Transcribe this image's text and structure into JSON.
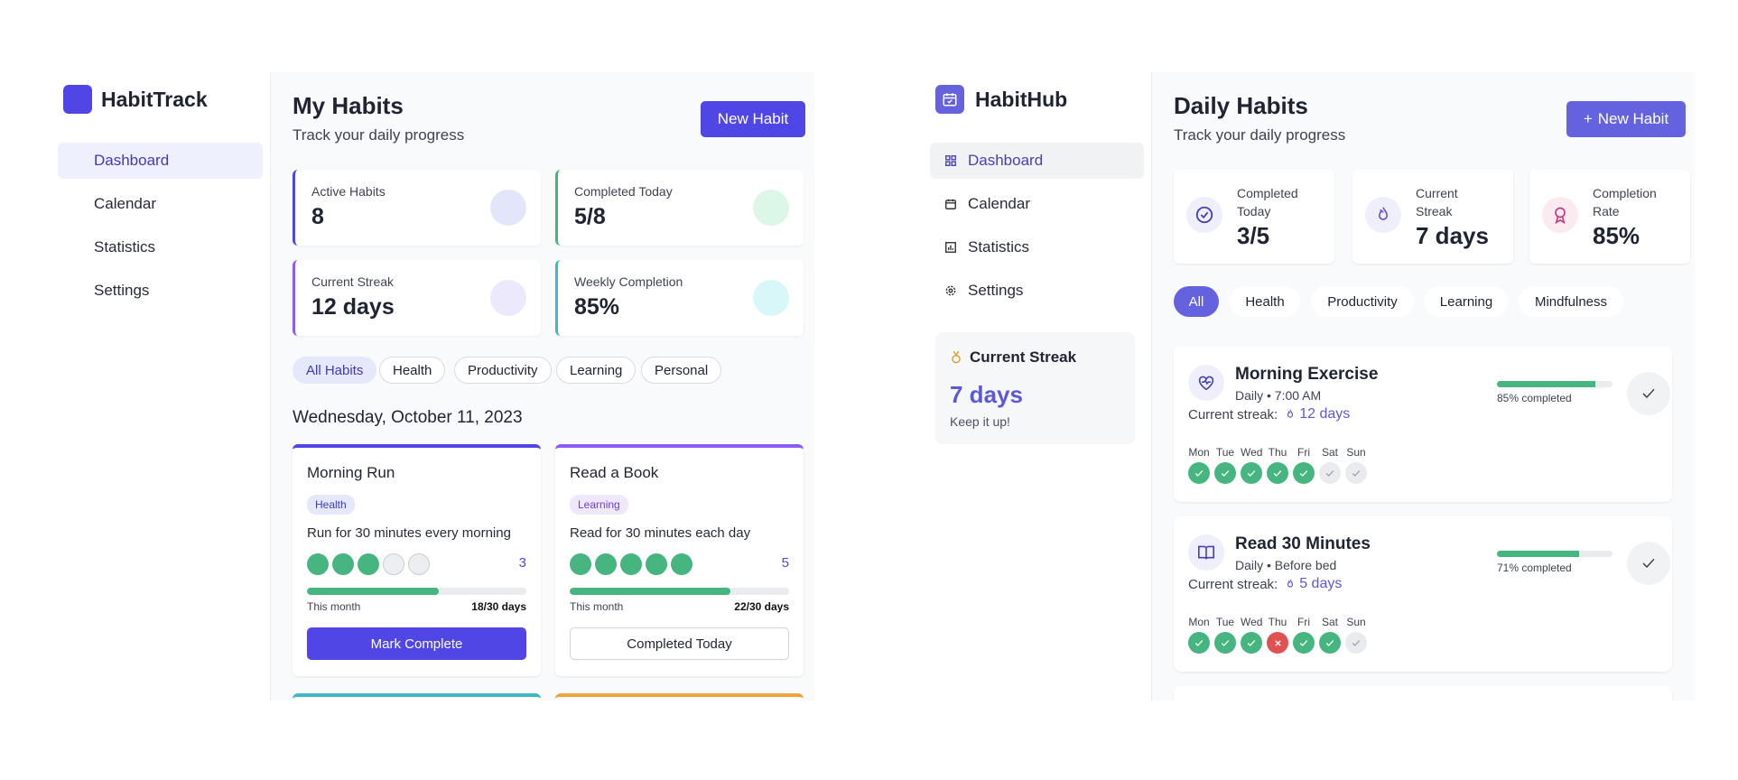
{
  "appA": {
    "brand": "HabitTrack",
    "nav": [
      {
        "label": "Dashboard",
        "active": true
      },
      {
        "label": "Calendar"
      },
      {
        "label": "Statistics"
      },
      {
        "label": "Settings"
      }
    ],
    "title": "My Habits",
    "subtitle": "Track your daily progress",
    "new_habit": "New Habit",
    "stats": [
      {
        "label": "Active Habits",
        "value": "8",
        "color": "#4f46e5",
        "dot": "#e3e6fb"
      },
      {
        "label": "Completed Today",
        "value": "5/8",
        "color": "#47b57f",
        "dot": "#dcf7e7"
      },
      {
        "label": "Current Streak",
        "value": "12 days",
        "color": "#8b5cf6",
        "dot": "#ece9fc"
      },
      {
        "label": "Weekly Completion",
        "value": "85%",
        "color": "#3fb8c4",
        "dot": "#d8f7f9"
      }
    ],
    "filters": [
      "All Habits",
      "Health",
      "Productivity",
      "Learning",
      "Personal"
    ],
    "date": "Wednesday, October 11, 2023",
    "cards": [
      {
        "title": "Morning Run",
        "tag": "Health",
        "desc": "Run for 30 minutes every morning",
        "count": "3",
        "done": 3,
        "month_label": "This month",
        "month_value": "18/30 days",
        "progress": 0.6,
        "button": "Mark Complete",
        "accent": "#4f46e5"
      },
      {
        "title": "Read a Book",
        "tag": "Learning",
        "desc": "Read for 30 minutes each day",
        "count": "5",
        "done": 5,
        "month_label": "This month",
        "month_value": "22/30 days",
        "progress": 0.733,
        "button": "Completed Today",
        "accent": "#8b5cf6"
      }
    ]
  },
  "appB": {
    "brand": "HabitHub",
    "nav": [
      {
        "label": "Dashboard",
        "active": true,
        "icon": "grid-icon"
      },
      {
        "label": "Calendar",
        "icon": "calendar-icon"
      },
      {
        "label": "Statistics",
        "icon": "chart-icon"
      },
      {
        "label": "Settings",
        "icon": "gear-icon"
      }
    ],
    "streak_box": {
      "title": "Current Streak",
      "value": "7 days",
      "note": "Keep it up!"
    },
    "title": "Daily Habits",
    "subtitle": "Track your daily progress",
    "new_habit": "New Habit",
    "stats": [
      {
        "label_1": "Completed",
        "label_2": "Today",
        "value": "3/5",
        "icon": "check-circle-icon"
      },
      {
        "label_1": "Current",
        "label_2": "Streak",
        "value": "7 days",
        "icon": "flame-icon"
      },
      {
        "label_1": "Completion",
        "label_2": "Rate",
        "value": "85%",
        "icon": "award-icon"
      }
    ],
    "filters": [
      "All",
      "Health",
      "Productivity",
      "Learning",
      "Mindfulness"
    ],
    "days": [
      "Mon",
      "Tue",
      "Wed",
      "Thu",
      "Fri",
      "Sat",
      "Sun"
    ],
    "habits": [
      {
        "name": "Morning Exercise",
        "freq": "Daily • 7:00 AM",
        "streak_label": "Current streak:",
        "streak": "12 days",
        "pct": 0.85,
        "pct_label": "85% completed",
        "week": [
          "g",
          "g",
          "g",
          "g",
          "g",
          "e",
          "e"
        ]
      },
      {
        "name": "Read 30 Minutes",
        "freq": "Daily • Before bed",
        "streak_label": "Current streak:",
        "streak": "5 days",
        "pct": 0.71,
        "pct_label": "71% completed",
        "week": [
          "g",
          "g",
          "g",
          "r",
          "g",
          "g",
          "e"
        ]
      }
    ]
  }
}
